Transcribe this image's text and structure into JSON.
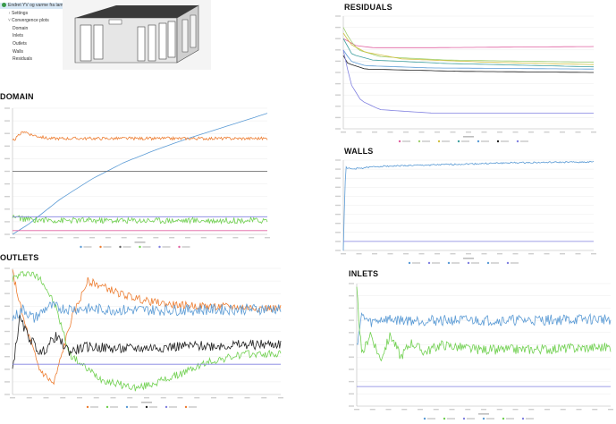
{
  "tree": {
    "items": [
      {
        "label": "Endret YV og varme fra lamper",
        "indent": 0,
        "selected": true,
        "icon": "study-icon"
      },
      {
        "label": "Settings",
        "indent": 1,
        "selected": false,
        "icon": "chevron-right-icon"
      },
      {
        "label": "Convergence plots",
        "indent": 1,
        "selected": false,
        "icon": "chevron-down-icon"
      },
      {
        "label": "Domain",
        "indent": 2,
        "selected": false,
        "icon": ""
      },
      {
        "label": "Inlets",
        "indent": 2,
        "selected": false,
        "icon": ""
      },
      {
        "label": "Outlets",
        "indent": 2,
        "selected": false,
        "icon": ""
      },
      {
        "label": "Walls",
        "indent": 2,
        "selected": false,
        "icon": ""
      },
      {
        "label": "Residuals",
        "indent": 2,
        "selected": false,
        "icon": ""
      }
    ]
  },
  "sections": {
    "residuals": "RESIDUALS",
    "domain": "DOMAIN",
    "walls": "WALLS",
    "outlets": "OUTLETS",
    "inlets": "INLETS"
  },
  "colors": {
    "blue": "#5b9bd5",
    "orange": "#ed7d31",
    "green": "#70d050",
    "black": "#222222",
    "purple": "#8080e0",
    "gray": "#606060",
    "pink": "#e060a0",
    "yellow": "#d0c040",
    "lightgreen": "#a0d070",
    "teal": "#40a0a0"
  },
  "chart_data": [
    {
      "id": "residuals",
      "type": "line",
      "xlim": [
        0,
        1700
      ],
      "ylim": [
        -10,
        0
      ],
      "series": [
        {
          "color": "pink",
          "points": [
            [
              0,
              -2
            ],
            [
              30,
              -2.2
            ],
            [
              80,
              -2.6
            ],
            [
              200,
              -2.8
            ],
            [
              600,
              -2.8
            ],
            [
              1700,
              -2.7
            ]
          ]
        },
        {
          "color": "lightgreen",
          "points": [
            [
              0,
              -1
            ],
            [
              40,
              -2
            ],
            [
              100,
              -3
            ],
            [
              250,
              -3.6
            ],
            [
              700,
              -3.9
            ],
            [
              1700,
              -4.1
            ]
          ]
        },
        {
          "color": "yellow",
          "points": [
            [
              0,
              -1.5
            ],
            [
              50,
              -2.5
            ],
            [
              150,
              -3.2
            ],
            [
              400,
              -3.8
            ],
            [
              1000,
              -4.1
            ],
            [
              1700,
              -4.3
            ]
          ]
        },
        {
          "color": "teal",
          "points": [
            [
              0,
              -2
            ],
            [
              60,
              -3.4
            ],
            [
              200,
              -3.9
            ],
            [
              700,
              -4.2
            ],
            [
              1700,
              -4.5
            ]
          ]
        },
        {
          "color": "blue",
          "points": [
            [
              0,
              -3
            ],
            [
              50,
              -4
            ],
            [
              150,
              -4.4
            ],
            [
              600,
              -4.6
            ],
            [
              1700,
              -4.7
            ]
          ]
        },
        {
          "color": "black",
          "points": [
            [
              0,
              -3.5
            ],
            [
              30,
              -4.2
            ],
            [
              150,
              -4.7
            ],
            [
              800,
              -4.9
            ],
            [
              1700,
              -5.0
            ]
          ]
        },
        {
          "color": "purple",
          "points": [
            [
              0,
              -3
            ],
            [
              50,
              -6
            ],
            [
              120,
              -7.5
            ],
            [
              250,
              -8.3
            ],
            [
              600,
              -8.6
            ],
            [
              1700,
              -8.6
            ]
          ]
        }
      ],
      "legend_count": 7
    },
    {
      "id": "domain",
      "type": "line",
      "xlim": [
        0,
        1600
      ],
      "ylim": [
        0,
        100
      ],
      "series": [
        {
          "color": "blue",
          "shape": "rise",
          "points": [
            [
              0,
              0
            ],
            [
              100,
              8
            ],
            [
              300,
              28
            ],
            [
              500,
              44
            ],
            [
              700,
              57
            ],
            [
              900,
              67
            ],
            [
              1100,
              76
            ],
            [
              1300,
              84
            ],
            [
              1500,
              92
            ],
            [
              1600,
              96
            ]
          ]
        },
        {
          "color": "orange",
          "noise": 0.6,
          "points": [
            [
              0,
              74
            ],
            [
              20,
              76
            ],
            [
              70,
              82
            ],
            [
              120,
              79
            ],
            [
              220,
              76
            ],
            [
              400,
              76
            ],
            [
              1600,
              76
            ]
          ]
        },
        {
          "color": "gray",
          "points": [
            [
              0,
              50
            ],
            [
              1600,
              50
            ]
          ]
        },
        {
          "color": "green",
          "noise": 1.2,
          "points": [
            [
              0,
              14
            ],
            [
              80,
              12
            ],
            [
              300,
              11
            ],
            [
              800,
              11
            ],
            [
              1600,
              11
            ]
          ]
        },
        {
          "color": "purple",
          "points": [
            [
              0,
              14
            ],
            [
              1600,
              14
            ]
          ]
        },
        {
          "color": "pink",
          "points": [
            [
              0,
              3
            ],
            [
              1600,
              3
            ]
          ]
        }
      ],
      "legend_count": 6
    },
    {
      "id": "walls",
      "type": "line",
      "xlim": [
        0,
        1500
      ],
      "ylim": [
        0,
        100
      ],
      "series": [
        {
          "color": "blue",
          "noise": 0.4,
          "points": [
            [
              0,
              0
            ],
            [
              8,
              60
            ],
            [
              15,
              92
            ],
            [
              50,
              90
            ],
            [
              200,
              93
            ],
            [
              600,
              95
            ],
            [
              1000,
              97
            ],
            [
              1500,
              98
            ]
          ]
        },
        {
          "color": "purple",
          "points": [
            [
              0,
              10
            ],
            [
              1500,
              10
            ]
          ]
        }
      ],
      "legend_count": 6
    },
    {
      "id": "outlets",
      "type": "line",
      "xlim": [
        0,
        1500
      ],
      "ylim": [
        0,
        100
      ],
      "series": [
        {
          "color": "orange",
          "noise": 1.5,
          "points": [
            [
              0,
              97
            ],
            [
              60,
              60
            ],
            [
              150,
              20
            ],
            [
              230,
              8
            ],
            [
              330,
              60
            ],
            [
              420,
              90
            ],
            [
              500,
              86
            ],
            [
              600,
              80
            ],
            [
              750,
              74
            ],
            [
              900,
              71
            ],
            [
              1100,
              70
            ],
            [
              1500,
              68
            ]
          ]
        },
        {
          "color": "green",
          "noise": 1.5,
          "points": [
            [
              0,
              92
            ],
            [
              80,
              97
            ],
            [
              160,
              92
            ],
            [
              240,
              70
            ],
            [
              320,
              32
            ],
            [
              400,
              22
            ],
            [
              500,
              12
            ],
            [
              600,
              8
            ],
            [
              700,
              5
            ],
            [
              900,
              14
            ],
            [
              1100,
              26
            ],
            [
              1300,
              32
            ],
            [
              1500,
              32
            ]
          ]
        },
        {
          "color": "blue",
          "noise": 2.2,
          "points": [
            [
              0,
              60
            ],
            [
              60,
              68
            ],
            [
              120,
              60
            ],
            [
              200,
              70
            ],
            [
              300,
              68
            ],
            [
              400,
              68
            ],
            [
              600,
              67
            ],
            [
              1000,
              67
            ],
            [
              1500,
              68
            ]
          ]
        },
        {
          "color": "black",
          "noise": 2.0,
          "points": [
            [
              0,
              20
            ],
            [
              40,
              60
            ],
            [
              80,
              48
            ],
            [
              160,
              32
            ],
            [
              240,
              46
            ],
            [
              320,
              34
            ],
            [
              420,
              38
            ],
            [
              600,
              36
            ],
            [
              900,
              38
            ],
            [
              1500,
              40
            ]
          ]
        },
        {
          "color": "purple",
          "points": [
            [
              0,
              24
            ],
            [
              1500,
              24
            ]
          ]
        }
      ],
      "legend_count": 6
    },
    {
      "id": "inlets",
      "type": "line",
      "xlim": [
        0,
        1500
      ],
      "ylim": [
        0,
        100
      ],
      "series": [
        {
          "color": "blue",
          "noise": 2.2,
          "points": [
            [
              0,
              50
            ],
            [
              30,
              74
            ],
            [
              80,
              68
            ],
            [
              150,
              71
            ],
            [
              300,
              70
            ],
            [
              600,
              70
            ],
            [
              1000,
              70
            ],
            [
              1500,
              71
            ]
          ]
        },
        {
          "color": "green",
          "noise": 2.0,
          "points": [
            [
              0,
              95
            ],
            [
              30,
              40
            ],
            [
              80,
              60
            ],
            [
              140,
              38
            ],
            [
              200,
              58
            ],
            [
              260,
              40
            ],
            [
              320,
              52
            ],
            [
              400,
              44
            ],
            [
              500,
              50
            ],
            [
              700,
              46
            ],
            [
              1000,
              46
            ],
            [
              1500,
              48
            ]
          ]
        },
        {
          "color": "purple",
          "points": [
            [
              0,
              16
            ],
            [
              1500,
              16
            ]
          ]
        }
      ],
      "legend_count": 6
    }
  ]
}
